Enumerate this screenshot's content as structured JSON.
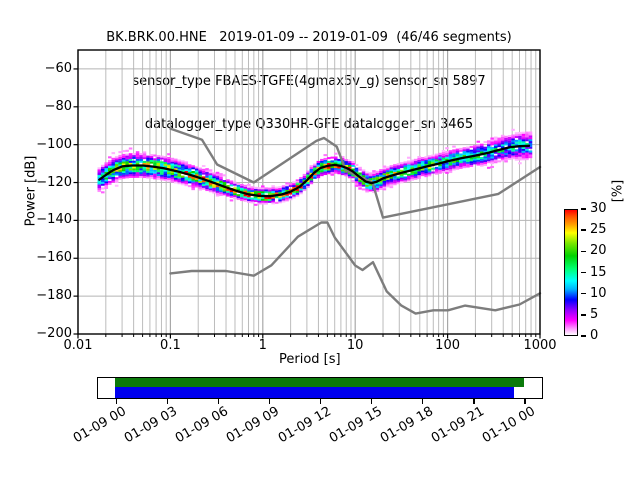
{
  "title": {
    "line1": "BK.BRK.00.HNE   2019-01-09 -- 2019-01-09  (46/46 segments)",
    "line2": "sensor_type FBAES-TGFE(4gmax5v_g) sensor_sn 5897",
    "line3": "datalogger_type Q330HR-GFE datalogger_sn 3465"
  },
  "axes": {
    "xlabel": "Period [s]",
    "ylabel": "Power [dB]",
    "x_tick_labels": [
      "0.01",
      "0.1",
      "1",
      "10",
      "100",
      "1000"
    ],
    "x_tick_values": [
      0.01,
      0.1,
      1,
      10,
      100,
      1000
    ],
    "y_tick_labels": [
      "−60",
      "−80",
      "−100",
      "−120",
      "−140",
      "−160",
      "−180",
      "−200"
    ],
    "y_tick_values": [
      -60,
      -80,
      -100,
      -120,
      -140,
      -160,
      -180,
      -200
    ]
  },
  "colorbar": {
    "label": "[%]",
    "tick_labels": [
      "30",
      "25",
      "20",
      "15",
      "10",
      "5",
      "0"
    ],
    "tick_values": [
      30,
      25,
      20,
      15,
      10,
      5,
      0
    ],
    "range": [
      0,
      30
    ]
  },
  "timeline": {
    "tick_labels": [
      "01-09 00",
      "01-09 03",
      "01-09 06",
      "01-09 09",
      "01-09 12",
      "01-09 15",
      "01-09 18",
      "01-09 21",
      "01-10 00"
    ],
    "tick_hours": [
      0,
      3,
      6,
      9,
      12,
      15,
      18,
      21,
      24
    ],
    "axis_range_hours": [
      -1.1,
      25.1
    ],
    "coverage_color": "#0b7a0b",
    "coverage_span_hours": [
      0,
      24
    ],
    "segment_color": "#0000ee",
    "segment_span_hours": [
      0,
      23.4
    ]
  },
  "chart_data": {
    "type": "heatmap",
    "description": "Probabilistic power spectral density (PPSD) histogram with mode line and Peterson noise models",
    "x_axis": {
      "label": "Period [s]",
      "scale": "log",
      "range": [
        0.01,
        1000
      ]
    },
    "y_axis": {
      "label": "Power [dB]",
      "range": [
        -200,
        -50
      ]
    },
    "colorbar": {
      "label": "[%]",
      "range": [
        0,
        30
      ]
    },
    "grid": true,
    "series": [
      {
        "name": "ppsd-mode",
        "type": "line",
        "color": "#000000",
        "points": [
          [
            0.017,
            -118.5
          ],
          [
            0.02,
            -116
          ],
          [
            0.024,
            -113.5
          ],
          [
            0.03,
            -111.5
          ],
          [
            0.038,
            -111
          ],
          [
            0.05,
            -111
          ],
          [
            0.065,
            -111.6
          ],
          [
            0.085,
            -112.5
          ],
          [
            0.1,
            -113.2
          ],
          [
            0.13,
            -114.6
          ],
          [
            0.17,
            -116.2
          ],
          [
            0.22,
            -118
          ],
          [
            0.3,
            -120.3
          ],
          [
            0.4,
            -122.5
          ],
          [
            0.55,
            -124.8
          ],
          [
            0.7,
            -126.2
          ],
          [
            0.9,
            -127
          ],
          [
            1.2,
            -127.2
          ],
          [
            1.6,
            -126.3
          ],
          [
            2,
            -124.8
          ],
          [
            2.5,
            -122.3
          ],
          [
            3,
            -118.8
          ],
          [
            3.6,
            -114.8
          ],
          [
            4.2,
            -112.3
          ],
          [
            5,
            -111.2
          ],
          [
            6,
            -110.7
          ],
          [
            7,
            -111.2
          ],
          [
            8,
            -112.2
          ],
          [
            9.5,
            -114.2
          ],
          [
            11,
            -116.8
          ],
          [
            13,
            -119.5
          ],
          [
            15,
            -120.3
          ],
          [
            17,
            -119.6
          ],
          [
            20,
            -117.8
          ],
          [
            25,
            -116.3
          ],
          [
            32,
            -114.8
          ],
          [
            45,
            -113
          ],
          [
            60,
            -111.5
          ],
          [
            80,
            -110
          ],
          [
            100,
            -108.8
          ],
          [
            140,
            -107.2
          ],
          [
            200,
            -105.8
          ],
          [
            280,
            -104.2
          ],
          [
            380,
            -102.5
          ],
          [
            480,
            -101.3
          ],
          [
            600,
            -100.8
          ],
          [
            760,
            -100.6
          ]
        ]
      },
      {
        "name": "noise-model-high-nhnm",
        "type": "line",
        "color": "#7d7d7d",
        "points": [
          [
            0.1,
            -91.5
          ],
          [
            0.22,
            -97.4
          ],
          [
            0.32,
            -110.5
          ],
          [
            0.8,
            -120
          ],
          [
            3.8,
            -98
          ],
          [
            4.6,
            -96.5
          ],
          [
            6.3,
            -101
          ],
          [
            7.9,
            -113.5
          ],
          [
            15.4,
            -120
          ],
          [
            20,
            -138.5
          ],
          [
            354.8,
            -126
          ],
          [
            1000,
            -111.8
          ]
        ]
      },
      {
        "name": "noise-model-low-nlnm",
        "type": "line",
        "color": "#7d7d7d",
        "points": [
          [
            0.1,
            -168
          ],
          [
            0.17,
            -166.7
          ],
          [
            0.4,
            -166.7
          ],
          [
            0.8,
            -169.2
          ],
          [
            1.24,
            -163.7
          ],
          [
            2.4,
            -148.6
          ],
          [
            4.3,
            -141.1
          ],
          [
            5,
            -141.1
          ],
          [
            6,
            -149
          ],
          [
            10,
            -163.8
          ],
          [
            12,
            -166.2
          ],
          [
            15.6,
            -162.1
          ],
          [
            21.9,
            -177.5
          ],
          [
            31.6,
            -185
          ],
          [
            45,
            -189.2
          ],
          [
            70,
            -187.5
          ],
          [
            101,
            -187.5
          ],
          [
            154,
            -185
          ],
          [
            328,
            -187.5
          ],
          [
            600,
            -184.4
          ],
          [
            1000,
            -178.5
          ]
        ]
      }
    ],
    "histogram_band": {
      "period_range": [
        0.017,
        800
      ],
      "db_bin_width": 1,
      "period_step_octaves": 0.125,
      "sigma_profile": {
        "log10_period": [
          -1.8,
          -1.4,
          -1.0,
          -0.5,
          -0.1,
          0.25,
          0.6,
          1.0,
          1.3,
          1.8,
          2.2,
          2.6,
          2.9
        ],
        "sigma_db": [
          2.9,
          2.9,
          2.7,
          2.1,
          1.6,
          1.7,
          1.9,
          2.1,
          2.2,
          2.3,
          2.5,
          3.0,
          3.6
        ]
      },
      "amplitude_profile": {
        "log10_period": [
          -1.8,
          -1.6,
          -1.2,
          -0.8,
          -0.4,
          -0.05,
          0.35,
          0.7,
          1.0,
          1.2,
          1.6,
          2.0,
          2.5,
          2.9
        ],
        "peak_percent": [
          14,
          19,
          20,
          22,
          26,
          30,
          26,
          25,
          22,
          22,
          19,
          17,
          14,
          11
        ]
      }
    },
    "colormap": {
      "name": "pqlx-like",
      "stops": [
        [
          0,
          "#ffffff"
        ],
        [
          1.5,
          "#ff9cff"
        ],
        [
          3.5,
          "#ff00ff"
        ],
        [
          6,
          "#9000ff"
        ],
        [
          8.5,
          "#0000ff"
        ],
        [
          11,
          "#00b4ff"
        ],
        [
          13,
          "#00ffff"
        ],
        [
          16,
          "#00ff6e"
        ],
        [
          19,
          "#00d200"
        ],
        [
          22,
          "#78e600"
        ],
        [
          24.5,
          "#ffff00"
        ],
        [
          26.5,
          "#ffa000"
        ],
        [
          28.5,
          "#ff5000"
        ],
        [
          30,
          "#ff0000"
        ]
      ]
    }
  }
}
